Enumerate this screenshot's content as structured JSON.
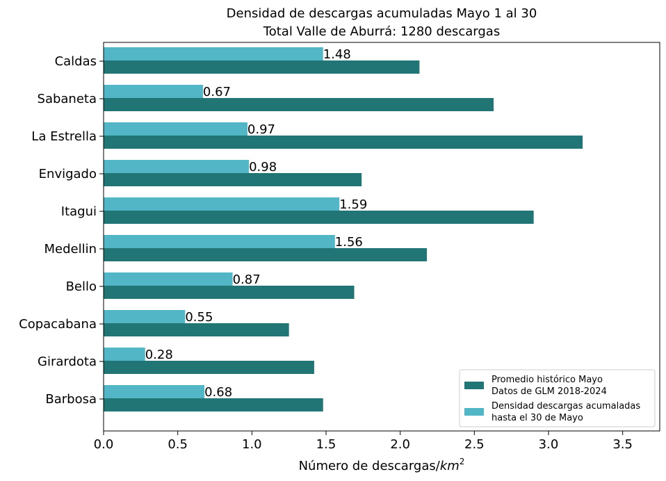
{
  "chart_data": {
    "type": "bar",
    "orientation": "horizontal",
    "title_line1": "Densidad de descargas acumuladas Mayo 1 al 30",
    "title_line2": "Total Valle de Aburrá: 1280 descargas",
    "xlabel": "Número de descargas/",
    "xlabel_math": "km",
    "xlabel_sup": "2",
    "ylabel": "",
    "xlim": [
      0,
      3.75
    ],
    "xticks": [
      "0.0",
      "0.5",
      "1.0",
      "1.5",
      "2.0",
      "2.5",
      "3.0",
      "3.5"
    ],
    "xtick_values": [
      0,
      0.5,
      1.0,
      1.5,
      2.0,
      2.5,
      3.0,
      3.5
    ],
    "categories": [
      "Barbosa",
      "Girardota",
      "Copacabana",
      "Bello",
      "Medellin",
      "Itagui",
      "Envigado",
      "La Estrella",
      "Sabaneta",
      "Caldas"
    ],
    "grid": false,
    "legend_position": "lower-right",
    "series": [
      {
        "name_line1": "Promedio histórico Mayo",
        "name_line2": "Datos de GLM 2018-2024",
        "color": "#217575",
        "values": [
          1.48,
          1.42,
          1.25,
          1.69,
          2.18,
          2.9,
          1.74,
          3.23,
          2.63,
          2.13
        ]
      },
      {
        "name_line1": "Densidad descargas acumaladas",
        "name_line2": "hasta el 30 de Mayo",
        "color": "#52b6c6",
        "values": [
          0.68,
          0.28,
          0.55,
          0.87,
          1.56,
          1.59,
          0.98,
          0.97,
          0.67,
          1.48
        ],
        "labels": [
          "0.68",
          "0.28",
          "0.55",
          "0.87",
          "1.56",
          "1.59",
          "0.98",
          "0.97",
          "0.67",
          "1.48"
        ]
      }
    ]
  }
}
